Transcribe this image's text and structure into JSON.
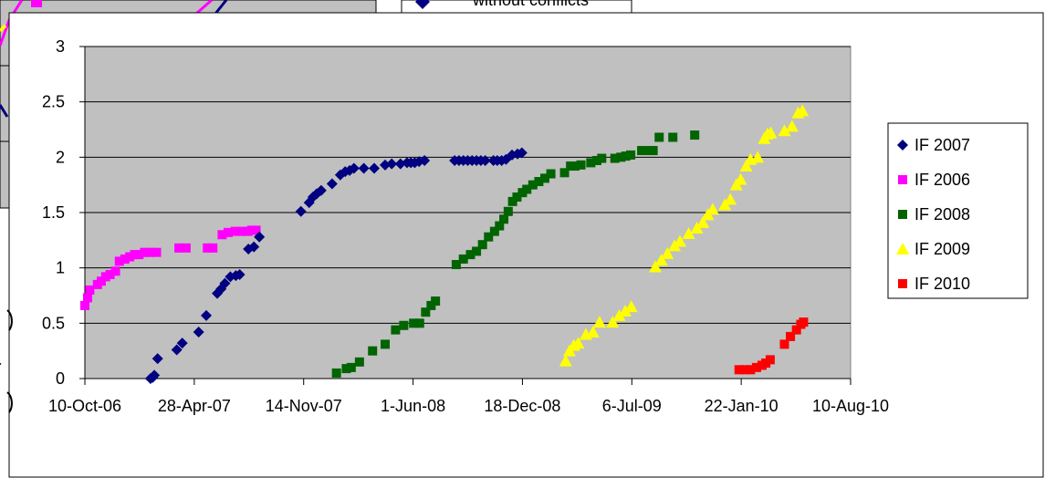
{
  "background_chart": {
    "legend_label": "without conflicts",
    "colors": {
      "line_blue": "#000080",
      "line_magenta": "#ff00ff",
      "line_yellow": "#ffff00"
    }
  },
  "chart_data": {
    "type": "scatter",
    "title": "",
    "xlabel": "",
    "ylabel": "",
    "xlim": [
      "2006-10-10",
      "2010-08-10"
    ],
    "ylim": [
      0,
      3
    ],
    "x_ticks": [
      "10-Oct-06",
      "28-Apr-07",
      "14-Nov-07",
      "1-Jun-08",
      "18-Dec-08",
      "6-Jul-09",
      "22-Jan-10",
      "10-Aug-10"
    ],
    "y_ticks": [
      "0",
      "0.5",
      "1",
      "1.5",
      "2",
      "2.5",
      "3"
    ],
    "grid": true,
    "plot_background": "#c0c0c0",
    "legend_position": "right",
    "series": [
      {
        "name": "IF 2007",
        "color": "#000080",
        "marker": "diamond",
        "points": [
          [
            "2007-02-07",
            0.0
          ],
          [
            "2007-02-11",
            0.01
          ],
          [
            "2007-02-14",
            0.03
          ],
          [
            "2007-02-20",
            0.18
          ],
          [
            "2007-03-27",
            0.26
          ],
          [
            "2007-04-06",
            0.32
          ],
          [
            "2007-05-06",
            0.42
          ],
          [
            "2007-05-20",
            0.57
          ],
          [
            "2007-06-09",
            0.77
          ],
          [
            "2007-06-16",
            0.81
          ],
          [
            "2007-06-23",
            0.86
          ],
          [
            "2007-07-03",
            0.92
          ],
          [
            "2007-07-13",
            0.93
          ],
          [
            "2007-07-20",
            0.94
          ],
          [
            "2007-08-05",
            1.17
          ],
          [
            "2007-08-15",
            1.19
          ],
          [
            "2007-08-25",
            1.28
          ],
          [
            "2007-11-09",
            1.51
          ],
          [
            "2007-11-24",
            1.59
          ],
          [
            "2007-12-01",
            1.64
          ],
          [
            "2007-12-08",
            1.67
          ],
          [
            "2007-12-16",
            1.7
          ],
          [
            "2008-01-05",
            1.76
          ],
          [
            "2008-01-20",
            1.84
          ],
          [
            "2008-01-29",
            1.87
          ],
          [
            "2008-02-06",
            1.88
          ],
          [
            "2008-02-14",
            1.9
          ],
          [
            "2008-03-03",
            1.9
          ],
          [
            "2008-03-22",
            1.9
          ],
          [
            "2008-04-11",
            1.93
          ],
          [
            "2008-04-23",
            1.94
          ],
          [
            "2008-05-09",
            1.94
          ],
          [
            "2008-05-21",
            1.95
          ],
          [
            "2008-05-28",
            1.95
          ],
          [
            "2008-06-04",
            1.95
          ],
          [
            "2008-06-12",
            1.96
          ],
          [
            "2008-06-22",
            1.97
          ],
          [
            "2008-08-16",
            1.97
          ],
          [
            "2008-08-24",
            1.97
          ],
          [
            "2008-09-01",
            1.97
          ],
          [
            "2008-09-09",
            1.97
          ],
          [
            "2008-09-17",
            1.97
          ],
          [
            "2008-09-25",
            1.97
          ],
          [
            "2008-10-03",
            1.97
          ],
          [
            "2008-10-11",
            1.97
          ],
          [
            "2008-10-26",
            1.97
          ],
          [
            "2008-11-02",
            1.97
          ],
          [
            "2008-11-10",
            1.97
          ],
          [
            "2008-11-18",
            1.98
          ],
          [
            "2008-11-29",
            2.02
          ],
          [
            "2008-12-09",
            2.03
          ],
          [
            "2008-12-17",
            2.04
          ]
        ]
      },
      {
        "name": "IF 2006",
        "color": "#ff00ff",
        "marker": "square",
        "points": [
          [
            "2006-10-10",
            0.66
          ],
          [
            "2006-10-15",
            0.73
          ],
          [
            "2006-10-19",
            0.8
          ],
          [
            "2006-11-02",
            0.85
          ],
          [
            "2006-11-09",
            0.88
          ],
          [
            "2006-11-17",
            0.92
          ],
          [
            "2006-11-25",
            0.94
          ],
          [
            "2006-12-05",
            0.97
          ],
          [
            "2006-12-12",
            1.06
          ],
          [
            "2006-12-22",
            1.08
          ],
          [
            "2006-12-31",
            1.1
          ],
          [
            "2007-01-09",
            1.12
          ],
          [
            "2007-01-17",
            1.12
          ],
          [
            "2007-01-27",
            1.14
          ],
          [
            "2007-02-05",
            1.14
          ],
          [
            "2007-02-18",
            1.14
          ],
          [
            "2007-03-31",
            1.18
          ],
          [
            "2007-04-13",
            1.18
          ],
          [
            "2007-05-22",
            1.18
          ],
          [
            "2007-06-01",
            1.18
          ],
          [
            "2007-06-18",
            1.3
          ],
          [
            "2007-06-29",
            1.32
          ],
          [
            "2007-07-12",
            1.33
          ],
          [
            "2007-07-24",
            1.33
          ],
          [
            "2007-08-04",
            1.33
          ],
          [
            "2007-08-11",
            1.34
          ],
          [
            "2007-08-19",
            1.34
          ]
        ]
      },
      {
        "name": "IF 2008",
        "color": "#006400",
        "marker": "square",
        "points": [
          [
            "2008-01-13",
            0.05
          ],
          [
            "2008-01-31",
            0.09
          ],
          [
            "2008-02-09",
            0.1
          ],
          [
            "2008-02-24",
            0.15
          ],
          [
            "2008-03-19",
            0.25
          ],
          [
            "2008-04-11",
            0.31
          ],
          [
            "2008-04-30",
            0.44
          ],
          [
            "2008-05-15",
            0.48
          ],
          [
            "2008-06-02",
            0.5
          ],
          [
            "2008-06-13",
            0.5
          ],
          [
            "2008-06-24",
            0.6
          ],
          [
            "2008-07-04",
            0.66
          ],
          [
            "2008-07-12",
            0.7
          ],
          [
            "2008-08-19",
            1.03
          ],
          [
            "2008-09-01",
            1.08
          ],
          [
            "2008-09-14",
            1.12
          ],
          [
            "2008-09-25",
            1.15
          ],
          [
            "2008-10-06",
            1.21
          ],
          [
            "2008-10-17",
            1.28
          ],
          [
            "2008-10-28",
            1.33
          ],
          [
            "2008-11-06",
            1.38
          ],
          [
            "2008-11-14",
            1.44
          ],
          [
            "2008-11-22",
            1.51
          ],
          [
            "2008-11-30",
            1.6
          ],
          [
            "2008-12-08",
            1.64
          ],
          [
            "2008-12-18",
            1.68
          ],
          [
            "2008-12-26",
            1.71
          ],
          [
            "2009-01-06",
            1.75
          ],
          [
            "2009-01-17",
            1.78
          ],
          [
            "2009-01-28",
            1.81
          ],
          [
            "2009-02-08",
            1.85
          ],
          [
            "2009-03-05",
            1.86
          ],
          [
            "2009-03-16",
            1.92
          ],
          [
            "2009-03-24",
            1.92
          ],
          [
            "2009-04-04",
            1.93
          ],
          [
            "2009-04-22",
            1.95
          ],
          [
            "2009-05-03",
            1.97
          ],
          [
            "2009-05-12",
            1.99
          ],
          [
            "2009-06-05",
            1.99
          ],
          [
            "2009-06-16",
            2.0
          ],
          [
            "2009-06-25",
            2.01
          ],
          [
            "2009-07-04",
            2.02
          ],
          [
            "2009-07-24",
            2.06
          ],
          [
            "2009-08-06",
            2.06
          ],
          [
            "2009-08-14",
            2.06
          ],
          [
            "2009-08-25",
            2.18
          ],
          [
            "2009-09-19",
            2.18
          ],
          [
            "2009-10-29",
            2.2
          ]
        ]
      },
      {
        "name": "IF 2009",
        "color": "#ffff00",
        "marker": "triangle",
        "points": [
          [
            "2009-03-07",
            0.16
          ],
          [
            "2009-03-14",
            0.25
          ],
          [
            "2009-03-22",
            0.3
          ],
          [
            "2009-03-30",
            0.32
          ],
          [
            "2009-04-13",
            0.4
          ],
          [
            "2009-04-26",
            0.42
          ],
          [
            "2009-05-08",
            0.51
          ],
          [
            "2009-06-01",
            0.51
          ],
          [
            "2009-06-13",
            0.57
          ],
          [
            "2009-06-24",
            0.61
          ],
          [
            "2009-07-05",
            0.65
          ],
          [
            "2009-08-18",
            1.01
          ],
          [
            "2009-08-29",
            1.07
          ],
          [
            "2009-09-09",
            1.13
          ],
          [
            "2009-09-22",
            1.2
          ],
          [
            "2009-10-02",
            1.24
          ],
          [
            "2009-10-18",
            1.31
          ],
          [
            "2009-11-02",
            1.36
          ],
          [
            "2009-11-13",
            1.41
          ],
          [
            "2009-11-22",
            1.48
          ],
          [
            "2009-12-01",
            1.53
          ],
          [
            "2009-12-23",
            1.57
          ],
          [
            "2010-01-02",
            1.62
          ],
          [
            "2010-01-13",
            1.75
          ],
          [
            "2010-01-21",
            1.8
          ],
          [
            "2010-01-31",
            1.92
          ],
          [
            "2010-02-08",
            1.98
          ],
          [
            "2010-02-21",
            2.0
          ],
          [
            "2010-03-05",
            2.17
          ],
          [
            "2010-03-11",
            2.21
          ],
          [
            "2010-03-17",
            2.22
          ],
          [
            "2010-04-11",
            2.24
          ],
          [
            "2010-04-25",
            2.28
          ],
          [
            "2010-05-06",
            2.4
          ],
          [
            "2010-05-14",
            2.42
          ]
        ]
      },
      {
        "name": "IF 2010",
        "color": "#ff0000",
        "marker": "square",
        "points": [
          [
            "2010-01-18",
            0.08
          ],
          [
            "2010-01-29",
            0.08
          ],
          [
            "2010-02-08",
            0.08
          ],
          [
            "2010-02-19",
            0.1
          ],
          [
            "2010-03-01",
            0.12
          ],
          [
            "2010-03-08",
            0.14
          ],
          [
            "2010-03-16",
            0.17
          ],
          [
            "2010-04-11",
            0.31
          ],
          [
            "2010-04-22",
            0.38
          ],
          [
            "2010-05-03",
            0.44
          ],
          [
            "2010-05-11",
            0.49
          ],
          [
            "2010-05-16",
            0.51
          ]
        ]
      }
    ]
  }
}
